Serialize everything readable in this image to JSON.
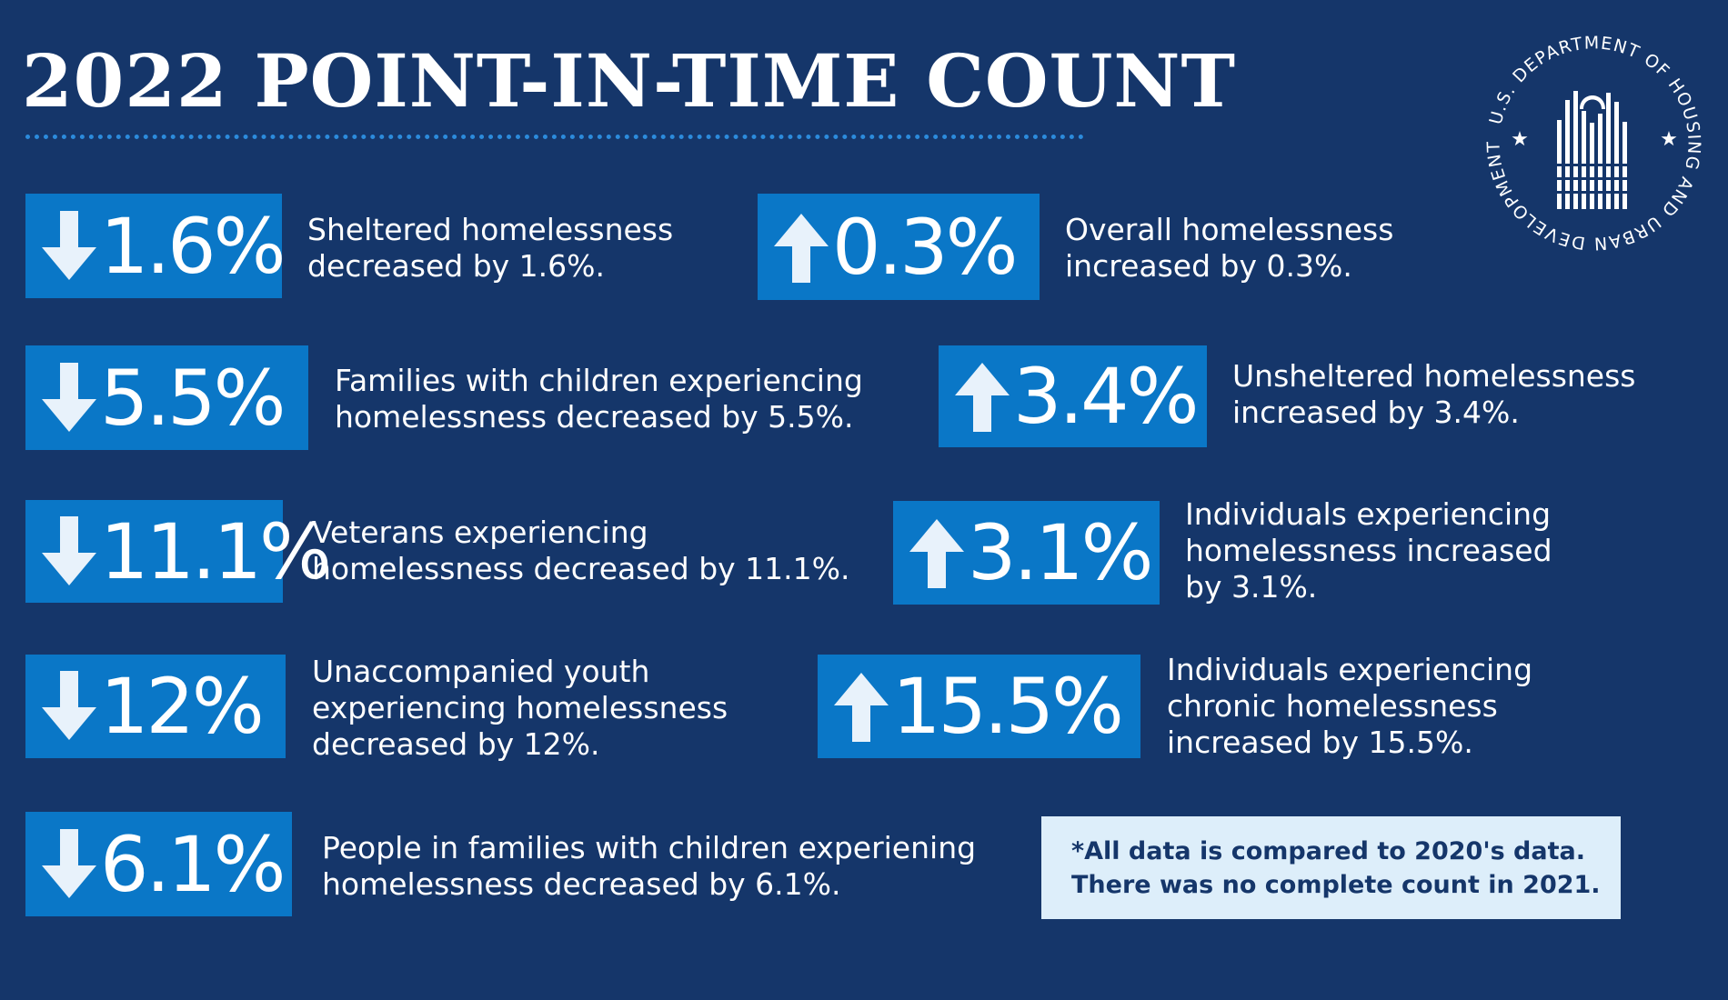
{
  "title": "2022 POINT-IN-TIME COUNT",
  "seal": {
    "ring_text": "U.S. DEPARTMENT OF HOUSING AND URBAN DEVELOPMENT",
    "icon": "hud-seal-icon"
  },
  "stats_left": [
    {
      "value": "1.6%",
      "direction": "down",
      "text": "Sheltered homelessness\ndecreased by 1.6%."
    },
    {
      "value": "5.5%",
      "direction": "down",
      "text": "Families with children experiencing\nhomelessness decreased by 5.5%."
    },
    {
      "value": "11.1%",
      "direction": "down",
      "text": "Veterans experiencing\nhomelessness decreased by 11.1%."
    },
    {
      "value": "12%",
      "direction": "down",
      "text": "Unaccompanied youth\nexperiencing homelessness\ndecreased by 12%."
    },
    {
      "value": "6.1%",
      "direction": "down",
      "text": "People in families with children experiening\nhomelessness decreased by 6.1%."
    }
  ],
  "stats_right": [
    {
      "value": "0.3%",
      "direction": "up",
      "text": "Overall homelessness\nincreased by 0.3%."
    },
    {
      "value": "3.4%",
      "direction": "up",
      "text": "Unsheltered homelessness\nincreased by 3.4%."
    },
    {
      "value": "3.1%",
      "direction": "up",
      "text": "Individuals experiencing\nhomelessness increased\nby 3.1%."
    },
    {
      "value": "15.5%",
      "direction": "up",
      "text": "Individuals experiencing\nchronic homelessness\nincreased by 15.5%."
    }
  ],
  "note": "*All data is compared to 2020's data.\nThere was no complete count in 2021.",
  "colors": {
    "background": "#15366a",
    "stat_box": "#0a77c7",
    "arrow": "#e8f2fb",
    "note_bg": "#ddeefa",
    "rule": "#2c8bdc"
  }
}
